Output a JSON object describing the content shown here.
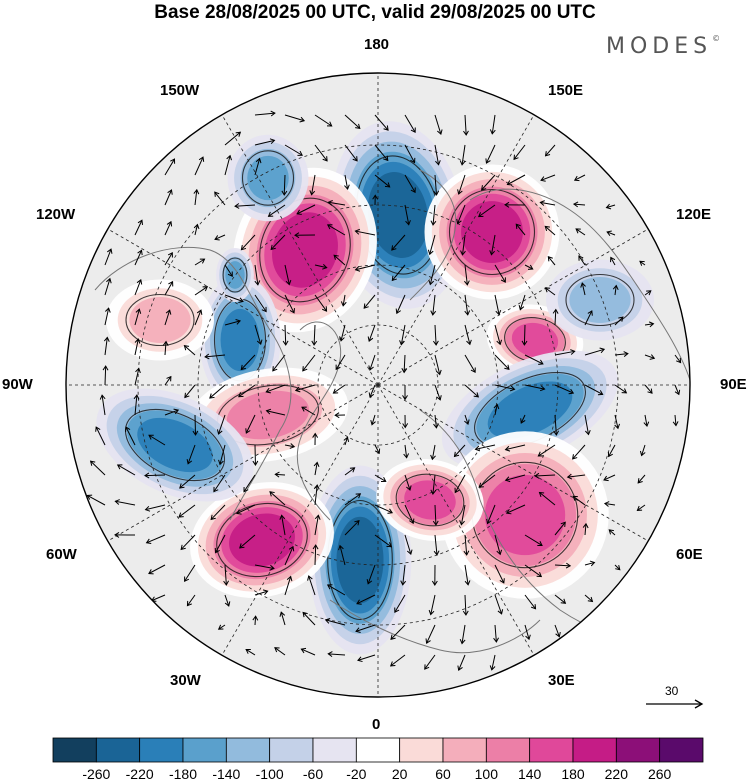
{
  "title": "Base 28/08/2025 00 UTC, valid 29/08/2025 00 UTC",
  "brand": "MODES",
  "brand_mark": "©",
  "lon_labels": {
    "n180": "180",
    "w150": "150W",
    "e150": "150E",
    "w120": "120W",
    "e120": "120E",
    "w90": "90W",
    "e90": "90E",
    "w60": "60W",
    "e60": "60E",
    "w30": "30W",
    "e30": "30E",
    "s0": "0"
  },
  "wind_reference": {
    "label": "30"
  },
  "colorbar": {
    "ticks": [
      "-260",
      "-220",
      "-180",
      "-140",
      "-100",
      "-60",
      "-20",
      "20",
      "60",
      "100",
      "140",
      "180",
      "220",
      "260"
    ],
    "colors": [
      "#123f5e",
      "#1a6496",
      "#2a7fb8",
      "#5aa0cc",
      "#92bbdd",
      "#c4d1e8",
      "#e6e4f1",
      "#ffffff",
      "#fadbd8",
      "#f4aebb",
      "#ec7fa7",
      "#e0489a",
      "#c51c86",
      "#8c0f78",
      "#5a0a6b"
    ]
  },
  "anomalies": [
    {
      "sign": "neg",
      "value": -220
    },
    {
      "sign": "pos",
      "value": 240
    },
    {
      "sign": "pos",
      "value": 220
    },
    {
      "sign": "neg",
      "value": -160
    },
    {
      "sign": "neg",
      "value": -200
    },
    {
      "sign": "pos",
      "value": 200
    },
    {
      "sign": "pos",
      "value": 150
    },
    {
      "sign": "neg",
      "value": -180
    },
    {
      "sign": "neg",
      "value": -240
    },
    {
      "sign": "pos",
      "value": 230
    },
    {
      "sign": "pos",
      "value": 190
    },
    {
      "sign": "neg",
      "value": -190
    },
    {
      "sign": "neg",
      "value": -150
    },
    {
      "sign": "pos",
      "value": 170
    },
    {
      "sign": "neg",
      "value": -120
    },
    {
      "sign": "pos",
      "value": 120
    }
  ]
}
